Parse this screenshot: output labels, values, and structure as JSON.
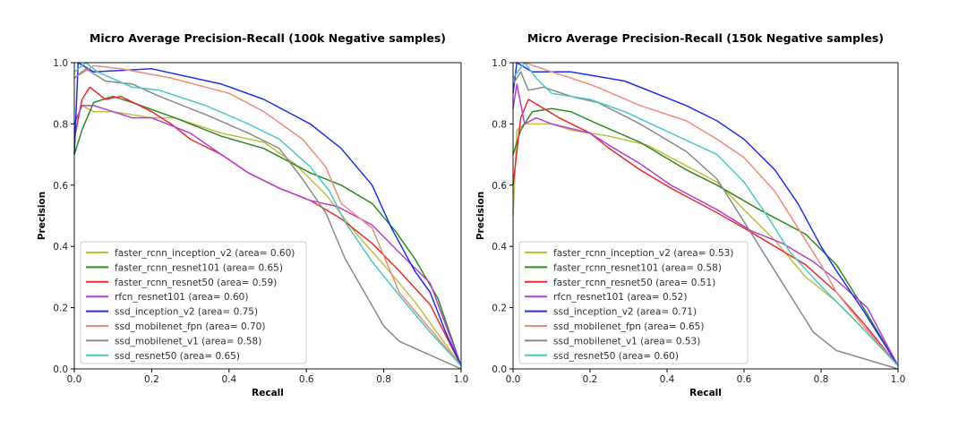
{
  "chart_data": [
    {
      "type": "line",
      "title": "Micro Average Precision-Recall (100k Negative samples)",
      "xlabel": "Recall",
      "ylabel": "Precision",
      "xlim": [
        0,
        1
      ],
      "ylim": [
        0,
        1
      ],
      "xticks": [
        "0.0",
        "0.2",
        "0.4",
        "0.6",
        "0.8",
        "1.0"
      ],
      "yticks": [
        "0.0",
        "0.2",
        "0.4",
        "0.6",
        "0.8",
        "1.0"
      ],
      "grid": false,
      "legend_placement": "lower-left",
      "series": [
        {
          "name": "faster_rcnn_inception_v2 (area= 0.60)",
          "color": "#bfbf3f",
          "points": [
            [
              0,
              0.8
            ],
            [
              0.02,
              0.86
            ],
            [
              0.05,
              0.84
            ],
            [
              0.1,
              0.84
            ],
            [
              0.2,
              0.82
            ],
            [
              0.26,
              0.82
            ],
            [
              0.38,
              0.77
            ],
            [
              0.49,
              0.74
            ],
            [
              0.57,
              0.67
            ],
            [
              0.65,
              0.57
            ],
            [
              0.73,
              0.44
            ],
            [
              0.8,
              0.34
            ],
            [
              0.88,
              0.22
            ],
            [
              1,
              0.01
            ]
          ]
        },
        {
          "name": "faster_rcnn_resnet101 (area= 0.65)",
          "color": "#2e8b22",
          "points": [
            [
              0,
              0.7
            ],
            [
              0.02,
              0.78
            ],
            [
              0.05,
              0.87
            ],
            [
              0.1,
              0.89
            ],
            [
              0.15,
              0.87
            ],
            [
              0.26,
              0.82
            ],
            [
              0.38,
              0.76
            ],
            [
              0.49,
              0.72
            ],
            [
              0.61,
              0.64
            ],
            [
              0.69,
              0.6
            ],
            [
              0.77,
              0.54
            ],
            [
              0.83,
              0.45
            ],
            [
              0.88,
              0.36
            ],
            [
              0.94,
              0.23
            ],
            [
              1,
              0.01
            ]
          ]
        },
        {
          "name": "faster_rcnn_resnet50 (area= 0.59)",
          "color": "#f02a2a",
          "points": [
            [
              0,
              0.75
            ],
            [
              0.02,
              0.88
            ],
            [
              0.04,
              0.92
            ],
            [
              0.08,
              0.88
            ],
            [
              0.12,
              0.89
            ],
            [
              0.2,
              0.84
            ],
            [
              0.25,
              0.8
            ],
            [
              0.3,
              0.75
            ],
            [
              0.38,
              0.7
            ],
            [
              0.45,
              0.64
            ],
            [
              0.53,
              0.59
            ],
            [
              0.61,
              0.55
            ],
            [
              0.69,
              0.49
            ],
            [
              0.77,
              0.41
            ],
            [
              0.84,
              0.32
            ],
            [
              0.92,
              0.21
            ],
            [
              1,
              0.01
            ]
          ]
        },
        {
          "name": "rfcn_resnet101 (area= 0.60)",
          "color": "#b63fd6",
          "points": [
            [
              0,
              0.8
            ],
            [
              0.02,
              0.86
            ],
            [
              0.05,
              0.86
            ],
            [
              0.1,
              0.84
            ],
            [
              0.15,
              0.82
            ],
            [
              0.2,
              0.82
            ],
            [
              0.3,
              0.77
            ],
            [
              0.38,
              0.7
            ],
            [
              0.45,
              0.64
            ],
            [
              0.53,
              0.59
            ],
            [
              0.61,
              0.55
            ],
            [
              0.68,
              0.53
            ],
            [
              0.77,
              0.47
            ],
            [
              0.84,
              0.38
            ],
            [
              0.92,
              0.28
            ],
            [
              1,
              0.01
            ]
          ]
        },
        {
          "name": "ssd_inception_v2 (area= 0.75)",
          "color": "#1f2ff2",
          "points": [
            [
              0,
              0.7
            ],
            [
              0.01,
              1.0
            ],
            [
              0.05,
              0.97
            ],
            [
              0.2,
              0.98
            ],
            [
              0.38,
              0.93
            ],
            [
              0.49,
              0.88
            ],
            [
              0.61,
              0.8
            ],
            [
              0.69,
              0.72
            ],
            [
              0.77,
              0.6
            ],
            [
              0.82,
              0.46
            ],
            [
              0.88,
              0.32
            ],
            [
              0.92,
              0.25
            ],
            [
              0.96,
              0.12
            ],
            [
              1,
              0.01
            ]
          ]
        },
        {
          "name": "ssd_mobilenet_fpn (area= 0.70)",
          "color": "#f08a7a",
          "points": [
            [
              0,
              0.95
            ],
            [
              0.05,
              0.99
            ],
            [
              0.12,
              0.98
            ],
            [
              0.25,
              0.95
            ],
            [
              0.4,
              0.9
            ],
            [
              0.49,
              0.84
            ],
            [
              0.59,
              0.75
            ],
            [
              0.65,
              0.66
            ],
            [
              0.69,
              0.54
            ],
            [
              0.77,
              0.46
            ],
            [
              0.81,
              0.34
            ],
            [
              0.84,
              0.25
            ],
            [
              0.92,
              0.13
            ],
            [
              1,
              0.01
            ]
          ]
        },
        {
          "name": "ssd_mobilenet_v1 (area= 0.58)",
          "color": "#8a8a8a",
          "points": [
            [
              0,
              0.95
            ],
            [
              0.03,
              0.98
            ],
            [
              0.08,
              0.94
            ],
            [
              0.15,
              0.93
            ],
            [
              0.22,
              0.89
            ],
            [
              0.34,
              0.83
            ],
            [
              0.45,
              0.77
            ],
            [
              0.53,
              0.72
            ],
            [
              0.59,
              0.62
            ],
            [
              0.65,
              0.51
            ],
            [
              0.7,
              0.36
            ],
            [
              0.75,
              0.25
            ],
            [
              0.8,
              0.14
            ],
            [
              0.84,
              0.09
            ],
            [
              1,
              0.0
            ]
          ]
        },
        {
          "name": "ssd_resnet50 (area= 0.65)",
          "color": "#4cc6c6",
          "points": [
            [
              0,
              0.97
            ],
            [
              0.03,
              1.0
            ],
            [
              0.06,
              0.97
            ],
            [
              0.15,
              0.92
            ],
            [
              0.22,
              0.91
            ],
            [
              0.34,
              0.86
            ],
            [
              0.45,
              0.8
            ],
            [
              0.53,
              0.75
            ],
            [
              0.61,
              0.66
            ],
            [
              0.66,
              0.58
            ],
            [
              0.7,
              0.48
            ],
            [
              0.77,
              0.35
            ],
            [
              0.84,
              0.24
            ],
            [
              0.92,
              0.12
            ],
            [
              1,
              0.01
            ]
          ]
        }
      ]
    },
    {
      "type": "line",
      "title": "Micro Average Precision-Recall (150k Negative samples)",
      "xlabel": "Recall",
      "ylabel": "Precision",
      "xlim": [
        0,
        1
      ],
      "ylim": [
        0,
        1
      ],
      "xticks": [
        "0.0",
        "0.2",
        "0.4",
        "0.6",
        "0.8",
        "1.0"
      ],
      "yticks": [
        "0.0",
        "0.2",
        "0.4",
        "0.6",
        "0.8",
        "1.0"
      ],
      "grid": false,
      "legend_placement": "lower-left",
      "series": [
        {
          "name": "faster_rcnn_inception_v2 (area= 0.53)",
          "color": "#bfbf3f",
          "points": [
            [
              0,
              0.5
            ],
            [
              0.01,
              0.78
            ],
            [
              0.03,
              0.8
            ],
            [
              0.1,
              0.8
            ],
            [
              0.15,
              0.78
            ],
            [
              0.25,
              0.76
            ],
            [
              0.35,
              0.73
            ],
            [
              0.41,
              0.69
            ],
            [
              0.53,
              0.61
            ],
            [
              0.6,
              0.52
            ],
            [
              0.68,
              0.42
            ],
            [
              0.76,
              0.3
            ],
            [
              0.84,
              0.22
            ],
            [
              0.91,
              0.13
            ],
            [
              1,
              0.01
            ]
          ]
        },
        {
          "name": "faster_rcnn_resnet101 (area= 0.58)",
          "color": "#2e8b22",
          "points": [
            [
              0,
              0.7
            ],
            [
              0.02,
              0.78
            ],
            [
              0.05,
              0.84
            ],
            [
              0.1,
              0.85
            ],
            [
              0.15,
              0.84
            ],
            [
              0.22,
              0.8
            ],
            [
              0.33,
              0.74
            ],
            [
              0.45,
              0.65
            ],
            [
              0.53,
              0.6
            ],
            [
              0.64,
              0.52
            ],
            [
              0.76,
              0.44
            ],
            [
              0.84,
              0.34
            ],
            [
              0.91,
              0.2
            ],
            [
              1,
              0.01
            ]
          ]
        },
        {
          "name": "faster_rcnn_resnet50 (area= 0.51)",
          "color": "#f02a2a",
          "points": [
            [
              0,
              0.6
            ],
            [
              0.02,
              0.82
            ],
            [
              0.04,
              0.88
            ],
            [
              0.08,
              0.85
            ],
            [
              0.12,
              0.82
            ],
            [
              0.2,
              0.77
            ],
            [
              0.25,
              0.72
            ],
            [
              0.33,
              0.65
            ],
            [
              0.41,
              0.59
            ],
            [
              0.53,
              0.51
            ],
            [
              0.6,
              0.46
            ],
            [
              0.68,
              0.4
            ],
            [
              0.76,
              0.34
            ],
            [
              0.84,
              0.25
            ],
            [
              0.91,
              0.15
            ],
            [
              1,
              0.01
            ]
          ]
        },
        {
          "name": "rfcn_resnet101 (area= 0.52)",
          "color": "#b63fd6",
          "points": [
            [
              0,
              0.85
            ],
            [
              0.01,
              0.93
            ],
            [
              0.03,
              0.8
            ],
            [
              0.06,
              0.82
            ],
            [
              0.1,
              0.8
            ],
            [
              0.2,
              0.77
            ],
            [
              0.25,
              0.73
            ],
            [
              0.33,
              0.67
            ],
            [
              0.41,
              0.6
            ],
            [
              0.53,
              0.52
            ],
            [
              0.62,
              0.45
            ],
            [
              0.7,
              0.41
            ],
            [
              0.78,
              0.35
            ],
            [
              0.84,
              0.29
            ],
            [
              0.92,
              0.2
            ],
            [
              1,
              0.01
            ]
          ]
        },
        {
          "name": "ssd_inception_v2 (area= 0.71)",
          "color": "#1f2ff2",
          "points": [
            [
              0,
              0.9
            ],
            [
              0.01,
              1.0
            ],
            [
              0.05,
              0.97
            ],
            [
              0.15,
              0.97
            ],
            [
              0.29,
              0.94
            ],
            [
              0.45,
              0.86
            ],
            [
              0.53,
              0.81
            ],
            [
              0.6,
              0.75
            ],
            [
              0.68,
              0.65
            ],
            [
              0.74,
              0.54
            ],
            [
              0.8,
              0.4
            ],
            [
              0.84,
              0.32
            ],
            [
              0.91,
              0.19
            ],
            [
              1,
              0.01
            ]
          ]
        },
        {
          "name": "ssd_mobilenet_fpn (area= 0.65)",
          "color": "#f08a7a",
          "points": [
            [
              0,
              0.95
            ],
            [
              0.03,
              1.0
            ],
            [
              0.1,
              0.97
            ],
            [
              0.15,
              0.95
            ],
            [
              0.22,
              0.92
            ],
            [
              0.33,
              0.86
            ],
            [
              0.45,
              0.81
            ],
            [
              0.53,
              0.75
            ],
            [
              0.6,
              0.69
            ],
            [
              0.68,
              0.58
            ],
            [
              0.74,
              0.46
            ],
            [
              0.8,
              0.34
            ],
            [
              0.84,
              0.25
            ],
            [
              0.91,
              0.14
            ],
            [
              1,
              0.01
            ]
          ]
        },
        {
          "name": "ssd_mobilenet_v1 (area= 0.53)",
          "color": "#8a8a8a",
          "points": [
            [
              0,
              0.93
            ],
            [
              0.02,
              0.97
            ],
            [
              0.04,
              0.91
            ],
            [
              0.08,
              0.92
            ],
            [
              0.15,
              0.89
            ],
            [
              0.22,
              0.87
            ],
            [
              0.33,
              0.8
            ],
            [
              0.45,
              0.71
            ],
            [
              0.53,
              0.62
            ],
            [
              0.6,
              0.48
            ],
            [
              0.67,
              0.34
            ],
            [
              0.73,
              0.22
            ],
            [
              0.78,
              0.12
            ],
            [
              0.84,
              0.06
            ],
            [
              1,
              0.0
            ]
          ]
        },
        {
          "name": "ssd_resnet50 (area= 0.60)",
          "color": "#4cc6c6",
          "points": [
            [
              0,
              0.95
            ],
            [
              0.03,
              1.0
            ],
            [
              0.06,
              0.95
            ],
            [
              0.1,
              0.9
            ],
            [
              0.2,
              0.88
            ],
            [
              0.29,
              0.84
            ],
            [
              0.41,
              0.77
            ],
            [
              0.53,
              0.7
            ],
            [
              0.6,
              0.61
            ],
            [
              0.66,
              0.5
            ],
            [
              0.72,
              0.38
            ],
            [
              0.8,
              0.27
            ],
            [
              0.88,
              0.17
            ],
            [
              1,
              0.01
            ]
          ]
        }
      ]
    }
  ]
}
